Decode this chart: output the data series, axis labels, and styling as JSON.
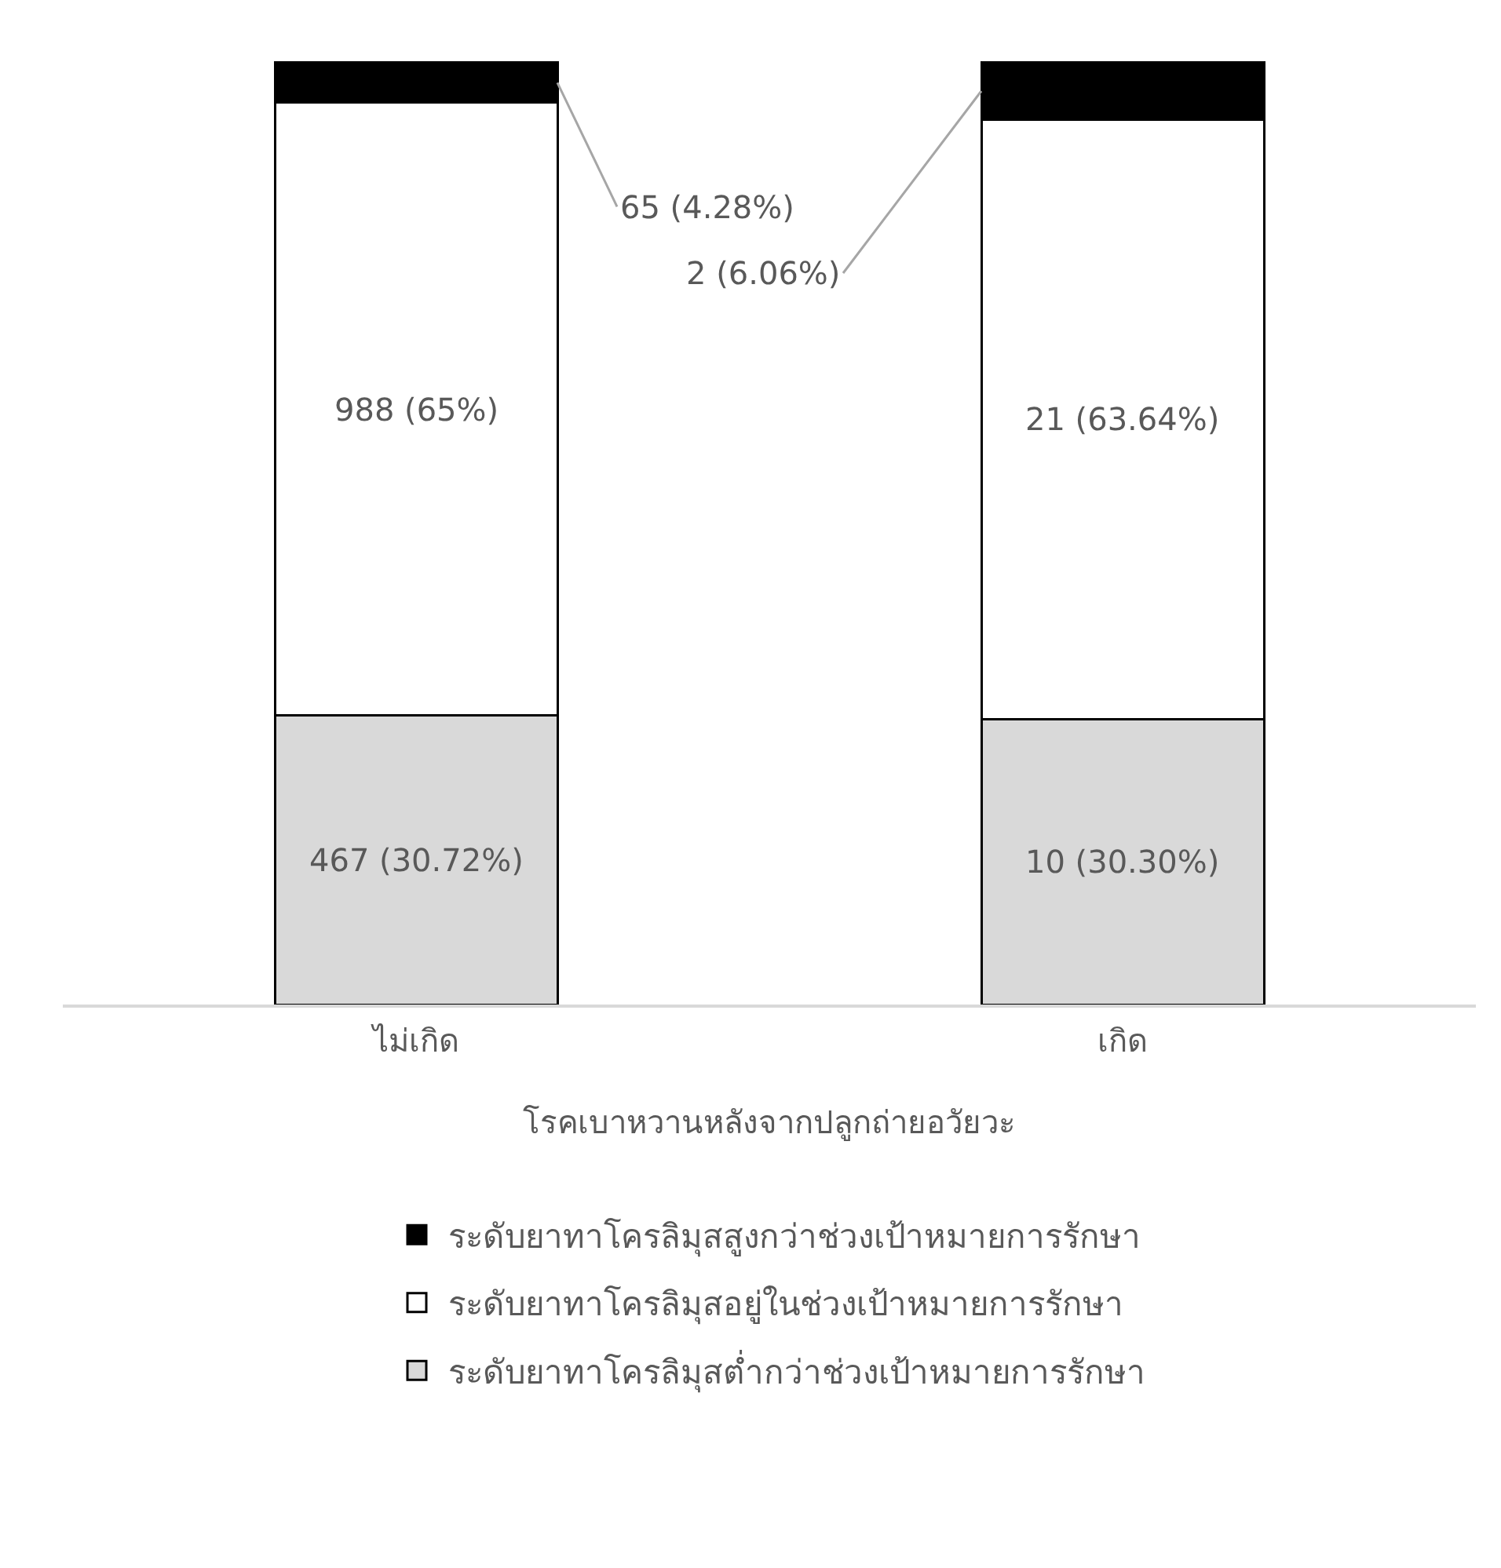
{
  "chart_data": {
    "type": "bar",
    "stacked": true,
    "xlabel": "โรคเบาหวานหลังจากปลูกถ่ายอวัยวะ",
    "categories": [
      "ไม่เกิด",
      "เกิด"
    ],
    "series": [
      {
        "name": "ระดับยาทาโครลิมุสต่ำกว่าช่วงเป้าหมายการรักษา",
        "color": "#d9d9d9",
        "values": [
          30.72,
          30.3
        ],
        "value_labels": [
          "467 (30.72%)",
          "10 (30.30%)"
        ]
      },
      {
        "name": "ระดับยาทาโครลิมุสอยู่ในช่วงเป้าหมายการรักษา",
        "color": "#ffffff",
        "values": [
          65,
          63.64
        ],
        "value_labels": [
          "988 (65%)",
          "21 (63.64%)"
        ]
      },
      {
        "name": "ระดับยาทาโครลิมุสสูงกว่าช่วงเป้าหมายการรักษา",
        "color": "#000000",
        "values": [
          4.28,
          6.06
        ],
        "value_labels": [
          "65 (4.28%)",
          "2 (6.06%)"
        ]
      }
    ],
    "legend": "bottom",
    "tick_labels": "x"
  }
}
